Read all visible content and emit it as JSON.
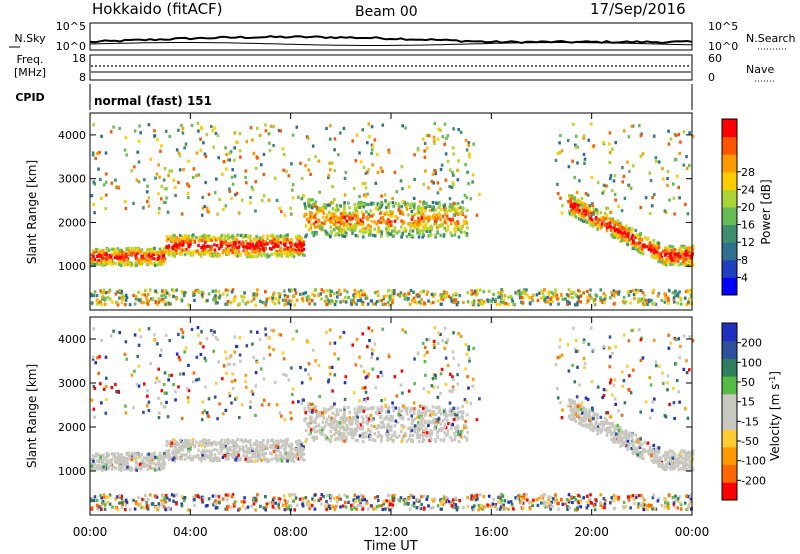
{
  "header": {
    "station": "Hokkaido (fitACF)",
    "beam": "Beam 00",
    "date": "17/Sep/2016"
  },
  "strip": {
    "nsky_label": "N.Sky",
    "nsky_ticks": [
      "10^5",
      "10^0"
    ],
    "nsearch_label": "N.Search",
    "nsearch_ticks": [
      "10^5",
      "10^0"
    ],
    "freq_label_1": "Freq.",
    "freq_label_2": "[MHz]",
    "freq_ticks": [
      "18",
      "8"
    ],
    "nave_label": "Nave",
    "nave_ticks": [
      "60",
      "0"
    ],
    "cpid_label": "CPID",
    "cpid_value": "normal (fast) 151"
  },
  "colors": {
    "power_scale": [
      "#0000ff",
      "#1f3fbf",
      "#2f6f8f",
      "#3f8f6f",
      "#66bb55",
      "#aad433",
      "#ffcc00",
      "#ff9900",
      "#ff5500",
      "#ff0000"
    ],
    "velocity_scale": [
      "#ff0000",
      "#ff6600",
      "#ff9900",
      "#ffcc33",
      "#c8c8c0",
      "#c8c8c0",
      "#55bb44",
      "#2f7f5f",
      "#2f4f9f",
      "#1f2fbf"
    ]
  },
  "chart_data": [
    {
      "type": "heatmap",
      "title": "",
      "xlabel": "Time UT",
      "ylabel": "Slant Range [km]",
      "xticks": [
        "00:00",
        "04:00",
        "08:00",
        "12:00",
        "16:00",
        "20:00",
        "00:00"
      ],
      "yticks": [
        "1000",
        "2000",
        "3000",
        "4000"
      ],
      "ylim": [
        0,
        4500
      ],
      "colorbar_label": "Power [dB]",
      "colorbar_ticks": [
        "4",
        "8",
        "12",
        "16",
        "20",
        "24",
        "28"
      ],
      "bands": [
        {
          "t0": 0.0,
          "t1": 3.0,
          "r0": 1050,
          "r1": 1450
        },
        {
          "t0": 3.0,
          "t1": 8.5,
          "r0": 1250,
          "r1": 1750
        },
        {
          "t0": 8.5,
          "t1": 15.0,
          "r0": 1700,
          "r1": 2500
        },
        {
          "t0": 19.0,
          "t1": 24.0,
          "r0": 1200,
          "r1": 2400
        }
      ]
    },
    {
      "type": "heatmap",
      "title": "",
      "xlabel": "Time UT",
      "ylabel": "Slant Range [km]",
      "xticks": [
        "00:00",
        "04:00",
        "08:00",
        "12:00",
        "16:00",
        "20:00",
        "00:00"
      ],
      "yticks": [
        "1000",
        "2000",
        "3000",
        "4000"
      ],
      "ylim": [
        0,
        4500
      ],
      "colorbar_label": "Velocity [m s-1]",
      "colorbar_ticks": [
        "200",
        "100",
        "50",
        "15",
        "-15",
        "-50",
        "-100",
        "-200"
      ]
    }
  ]
}
